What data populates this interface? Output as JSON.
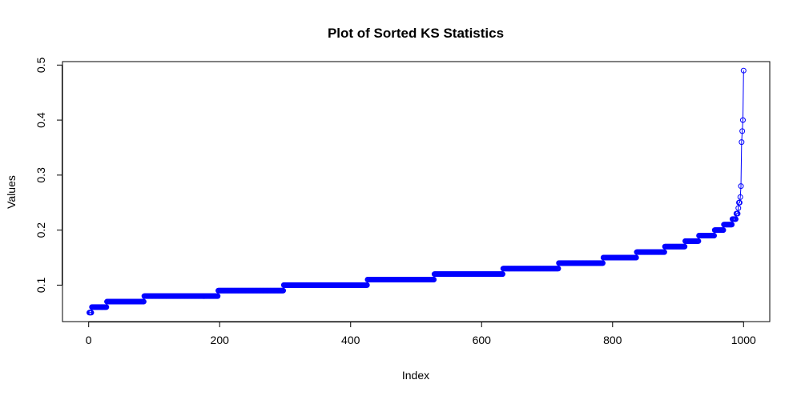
{
  "chart_data": {
    "type": "line",
    "title": "Plot of Sorted KS Statistics",
    "xlabel": "Index",
    "ylabel": "Values",
    "xlim": [
      -40,
      1040
    ],
    "ylim": [
      0.0337,
      0.5063
    ],
    "x_ticks": [
      0,
      200,
      400,
      600,
      800,
      1000
    ],
    "y_ticks": [
      0.1,
      0.2,
      0.3,
      0.4,
      0.5
    ],
    "grid": false,
    "markers": "open-circle",
    "color": "#0000ff",
    "n_points": 1000,
    "series": [
      {
        "plateaus": [
          {
            "from": 1,
            "to": 4,
            "value": 0.05
          },
          {
            "from": 5,
            "to": 27,
            "value": 0.06
          },
          {
            "from": 28,
            "to": 84,
            "value": 0.07
          },
          {
            "from": 85,
            "to": 197,
            "value": 0.08
          },
          {
            "from": 198,
            "to": 297,
            "value": 0.09
          },
          {
            "from": 298,
            "to": 425,
            "value": 0.1
          },
          {
            "from": 426,
            "to": 527,
            "value": 0.11
          },
          {
            "from": 528,
            "to": 632,
            "value": 0.12
          },
          {
            "from": 633,
            "to": 717,
            "value": 0.13
          },
          {
            "from": 718,
            "to": 785,
            "value": 0.14
          },
          {
            "from": 786,
            "to": 836,
            "value": 0.15
          },
          {
            "from": 837,
            "to": 879,
            "value": 0.16
          },
          {
            "from": 880,
            "to": 910,
            "value": 0.17
          },
          {
            "from": 911,
            "to": 931,
            "value": 0.18
          },
          {
            "from": 932,
            "to": 955,
            "value": 0.19
          },
          {
            "from": 956,
            "to": 969,
            "value": 0.2
          },
          {
            "from": 970,
            "to": 982,
            "value": 0.21
          },
          {
            "from": 983,
            "to": 988,
            "value": 0.22
          },
          {
            "from": 989,
            "to": 991,
            "value": 0.23
          },
          {
            "from": 992,
            "to": 992,
            "value": 0.24
          },
          {
            "from": 993,
            "to": 994,
            "value": 0.25
          },
          {
            "from": 995,
            "to": 995,
            "value": 0.26
          },
          {
            "from": 996,
            "to": 996,
            "value": 0.28
          },
          {
            "from": 997,
            "to": 997,
            "value": 0.36
          },
          {
            "from": 998,
            "to": 998,
            "value": 0.38
          },
          {
            "from": 999,
            "to": 999,
            "value": 0.4
          },
          {
            "from": 1000,
            "to": 1000,
            "value": 0.49
          }
        ]
      }
    ]
  }
}
